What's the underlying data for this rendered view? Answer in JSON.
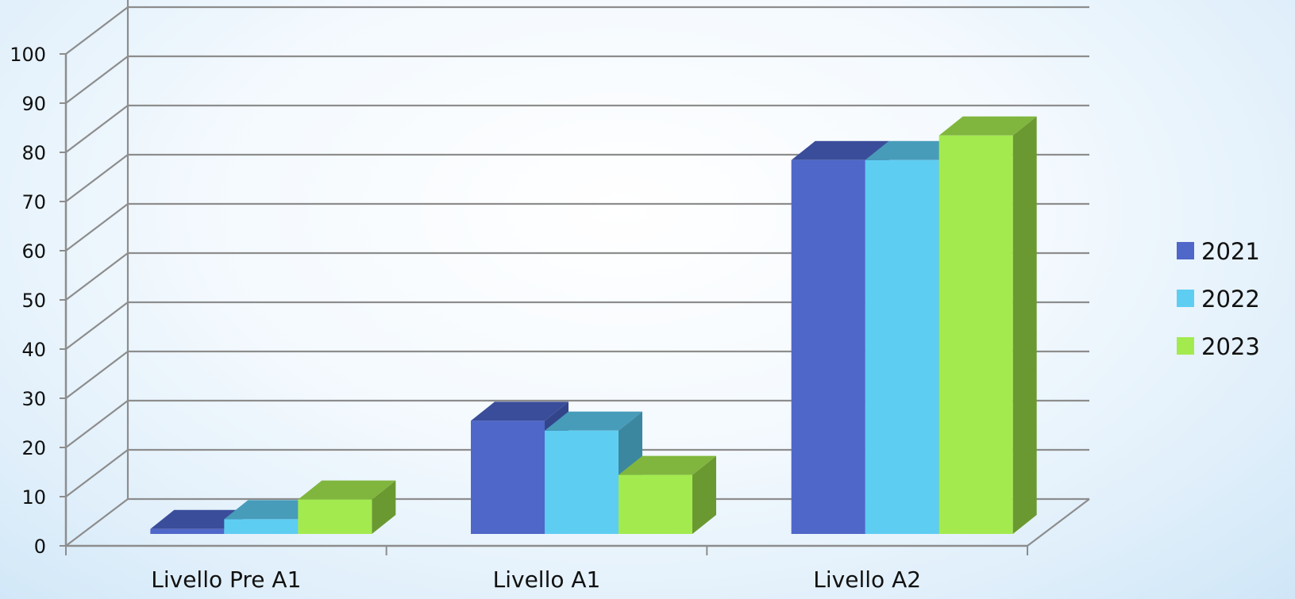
{
  "chart_data": {
    "type": "bar",
    "categories": [
      "Livello Pre A1",
      "Livello A1",
      "Livello A2"
    ],
    "series": [
      {
        "name": "2021",
        "values": [
          1,
          23,
          76
        ],
        "color": "#4f67c9",
        "top_color": "#3a4d9a",
        "side_color": "#33458a"
      },
      {
        "name": "2022",
        "values": [
          3,
          21,
          76
        ],
        "color": "#5ecdf2",
        "top_color": "#479cba",
        "side_color": "#3b879f"
      },
      {
        "name": "2023",
        "values": [
          7,
          12,
          81
        ],
        "color": "#a3ea4f",
        "top_color": "#80b63e",
        "side_color": "#6a9932"
      }
    ],
    "y_ticks": [
      "0",
      "10",
      "20",
      "30",
      "40",
      "50",
      "60",
      "70",
      "80",
      "90",
      "100"
    ],
    "ylim": [
      0,
      100
    ],
    "grid": true,
    "legend_position": "right",
    "title": "",
    "xlabel": "",
    "ylabel": ""
  }
}
